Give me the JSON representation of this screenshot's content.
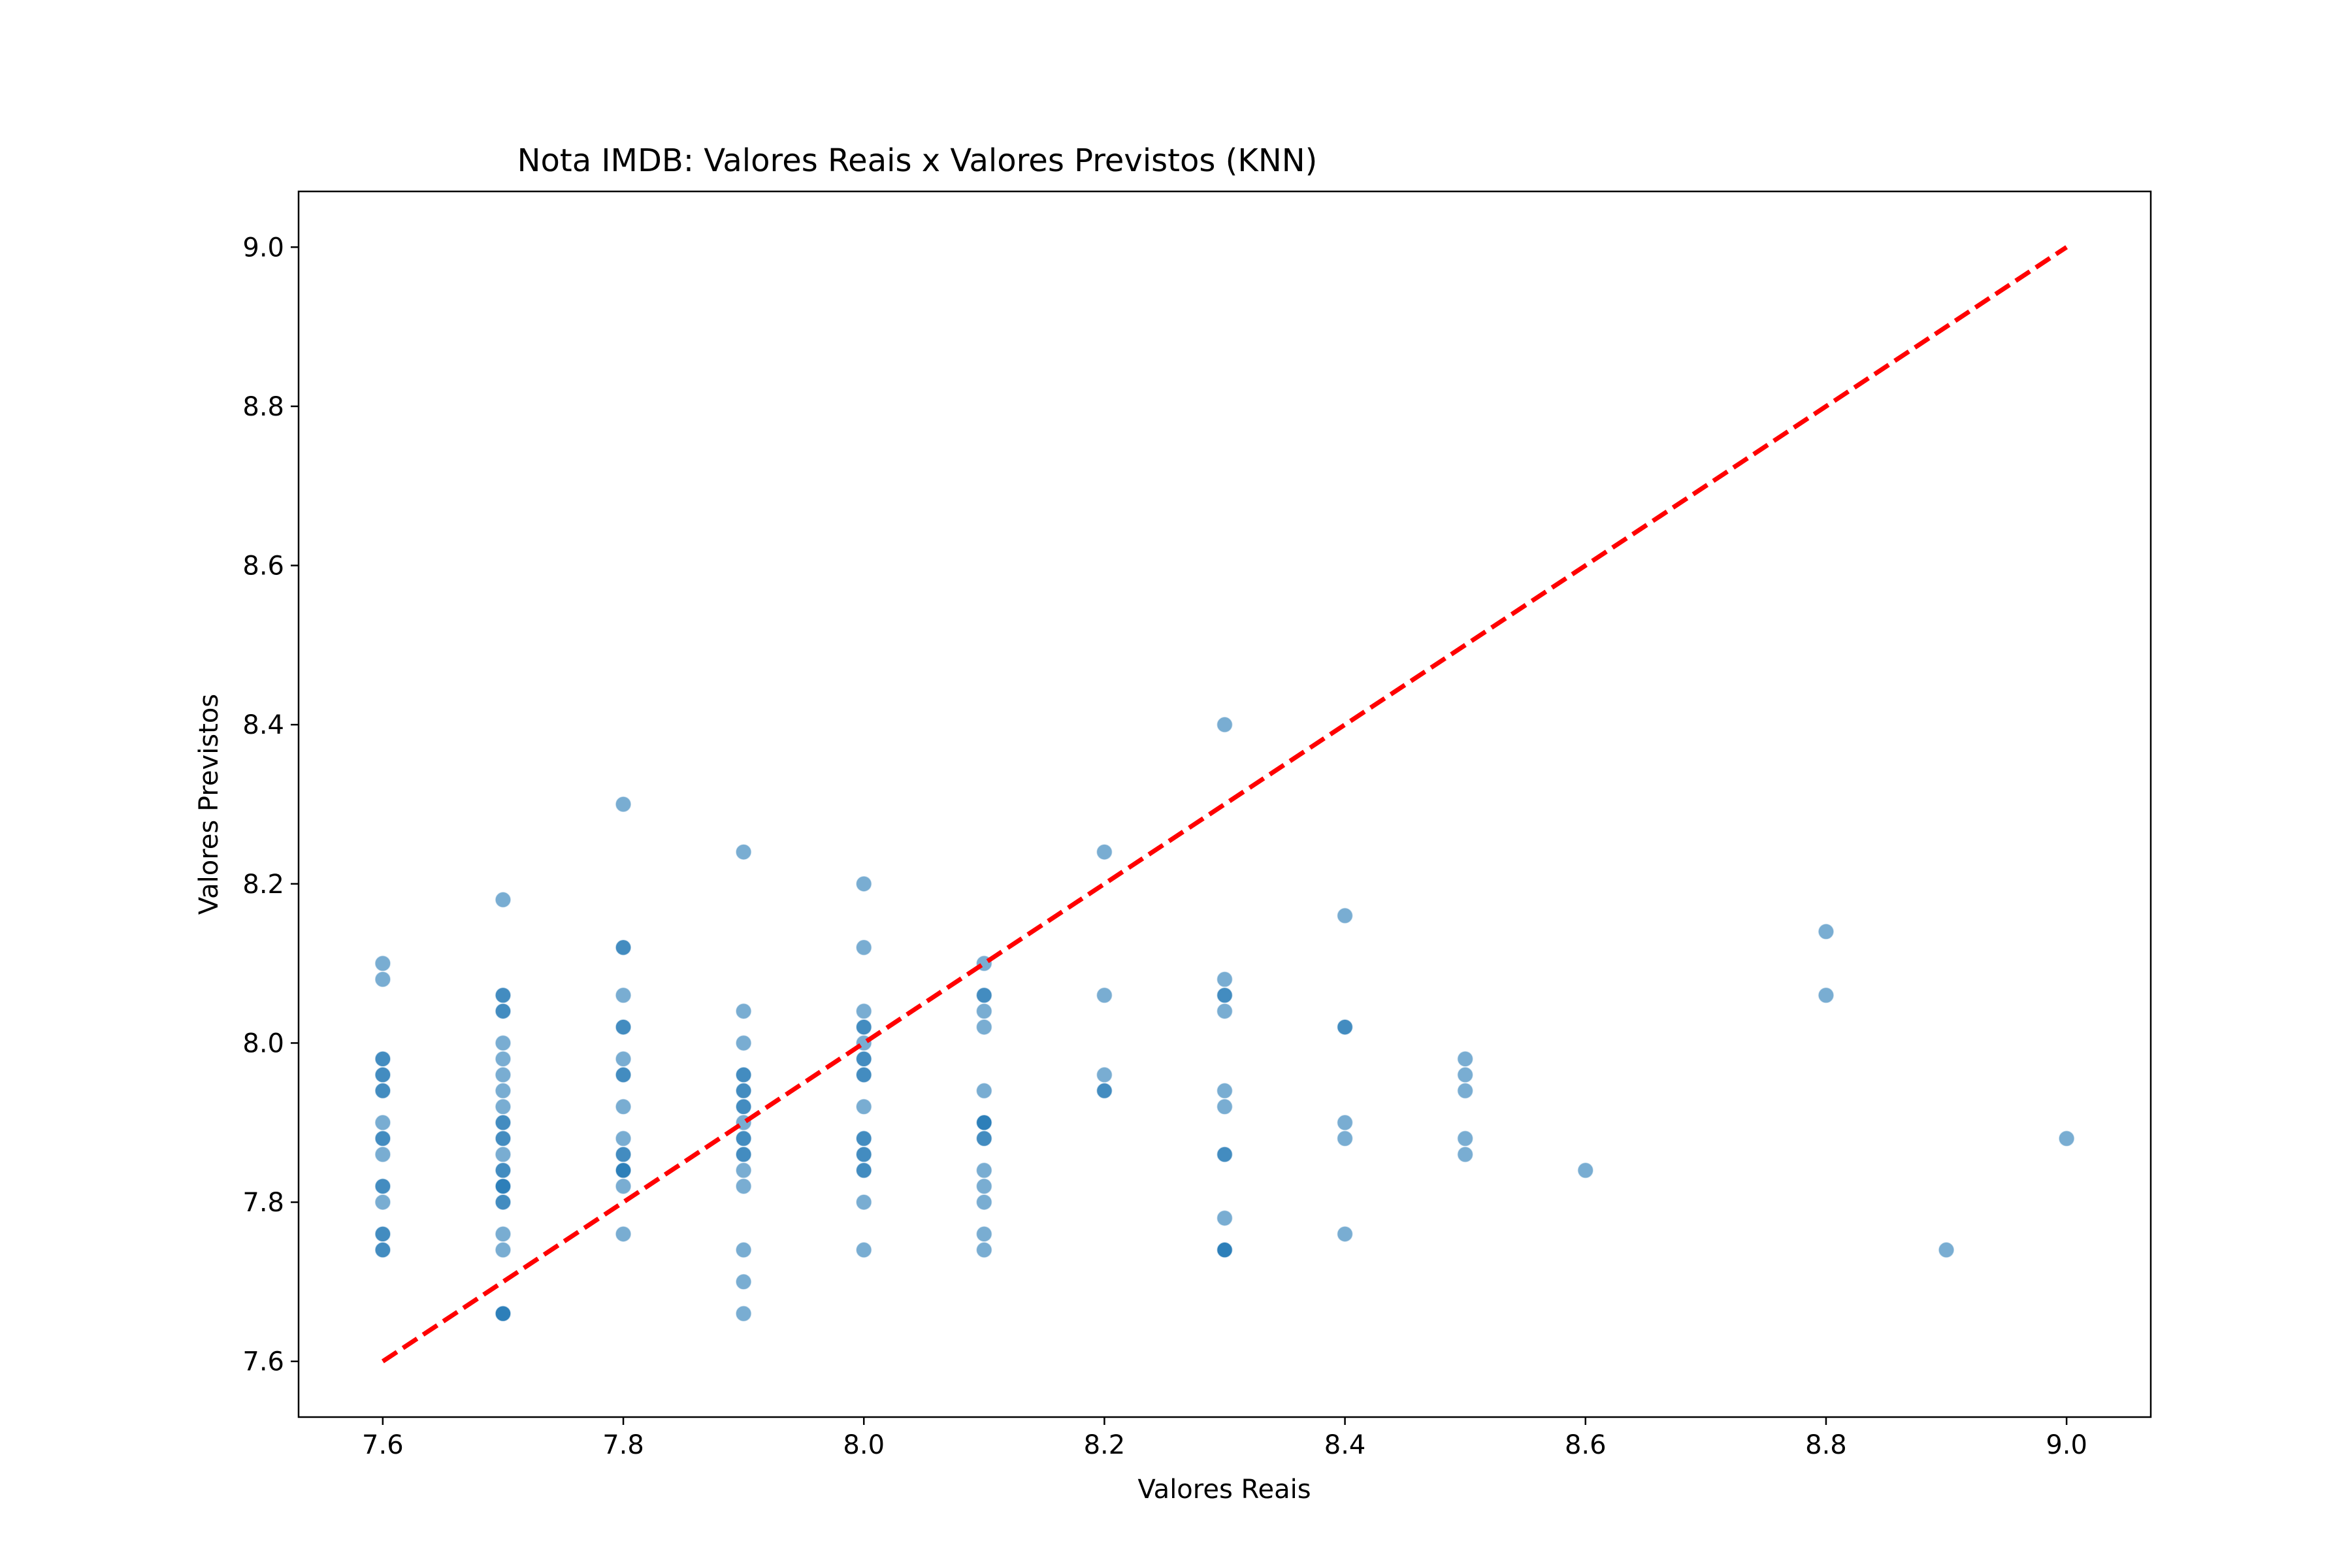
{
  "chart_data": {
    "type": "scatter",
    "title": "Nota IMDB: Valores Reais x Valores Previstos (KNN)",
    "xlabel": "Valores Reais",
    "ylabel": "Valores Previstos",
    "xlim": [
      7.53,
      9.07
    ],
    "ylim": [
      7.53,
      9.07
    ],
    "xticks": [
      "7.6",
      "7.8",
      "8.0",
      "8.2",
      "8.4",
      "8.6",
      "8.8",
      "9.0"
    ],
    "yticks": [
      "7.6",
      "7.8",
      "8.0",
      "8.2",
      "8.4",
      "8.6",
      "8.8",
      "9.0"
    ],
    "grid": false,
    "legend": "none",
    "point_color": "#1f77b4",
    "point_alpha": 0.6,
    "reference_line": {
      "from": [
        7.6,
        7.6
      ],
      "to": [
        9.0,
        9.0
      ],
      "color": "#ff0000",
      "style": "dashed"
    },
    "points": [
      [
        7.6,
        8.1
      ],
      [
        7.6,
        8.08
      ],
      [
        7.6,
        7.98
      ],
      [
        7.6,
        7.98
      ],
      [
        7.6,
        7.96
      ],
      [
        7.6,
        7.96
      ],
      [
        7.6,
        7.94
      ],
      [
        7.6,
        7.94
      ],
      [
        7.6,
        7.9
      ],
      [
        7.6,
        7.88
      ],
      [
        7.6,
        7.88
      ],
      [
        7.6,
        7.86
      ],
      [
        7.6,
        7.82
      ],
      [
        7.6,
        7.82
      ],
      [
        7.6,
        7.8
      ],
      [
        7.6,
        7.76
      ],
      [
        7.6,
        7.76
      ],
      [
        7.6,
        7.74
      ],
      [
        7.6,
        7.74
      ],
      [
        7.7,
        8.18
      ],
      [
        7.7,
        8.06
      ],
      [
        7.7,
        8.06
      ],
      [
        7.7,
        8.04
      ],
      [
        7.7,
        8.04
      ],
      [
        7.7,
        8.0
      ],
      [
        7.7,
        7.98
      ],
      [
        7.7,
        7.96
      ],
      [
        7.7,
        7.94
      ],
      [
        7.7,
        7.92
      ],
      [
        7.7,
        7.9
      ],
      [
        7.7,
        7.9
      ],
      [
        7.7,
        7.88
      ],
      [
        7.7,
        7.88
      ],
      [
        7.7,
        7.86
      ],
      [
        7.7,
        7.84
      ],
      [
        7.7,
        7.84
      ],
      [
        7.7,
        7.82
      ],
      [
        7.7,
        7.82
      ],
      [
        7.7,
        7.82
      ],
      [
        7.7,
        7.8
      ],
      [
        7.7,
        7.8
      ],
      [
        7.7,
        7.76
      ],
      [
        7.7,
        7.74
      ],
      [
        7.7,
        7.66
      ],
      [
        7.7,
        7.66
      ],
      [
        7.7,
        7.66
      ],
      [
        7.8,
        8.3
      ],
      [
        7.8,
        8.12
      ],
      [
        7.8,
        8.12
      ],
      [
        7.8,
        8.06
      ],
      [
        7.8,
        8.02
      ],
      [
        7.8,
        8.02
      ],
      [
        7.8,
        7.98
      ],
      [
        7.8,
        7.96
      ],
      [
        7.8,
        7.96
      ],
      [
        7.8,
        7.92
      ],
      [
        7.8,
        7.88
      ],
      [
        7.8,
        7.86
      ],
      [
        7.8,
        7.86
      ],
      [
        7.8,
        7.84
      ],
      [
        7.8,
        7.84
      ],
      [
        7.8,
        7.84
      ],
      [
        7.8,
        7.82
      ],
      [
        7.8,
        7.76
      ],
      [
        7.9,
        8.24
      ],
      [
        7.9,
        8.04
      ],
      [
        7.9,
        8.0
      ],
      [
        7.9,
        7.96
      ],
      [
        7.9,
        7.96
      ],
      [
        7.9,
        7.94
      ],
      [
        7.9,
        7.94
      ],
      [
        7.9,
        7.92
      ],
      [
        7.9,
        7.92
      ],
      [
        7.9,
        7.9
      ],
      [
        7.9,
        7.88
      ],
      [
        7.9,
        7.88
      ],
      [
        7.9,
        7.86
      ],
      [
        7.9,
        7.86
      ],
      [
        7.9,
        7.84
      ],
      [
        7.9,
        7.82
      ],
      [
        7.9,
        7.74
      ],
      [
        7.9,
        7.7
      ],
      [
        7.9,
        7.66
      ],
      [
        8.0,
        8.2
      ],
      [
        8.0,
        8.12
      ],
      [
        8.0,
        8.04
      ],
      [
        8.0,
        8.02
      ],
      [
        8.0,
        8.02
      ],
      [
        8.0,
        8.0
      ],
      [
        8.0,
        7.98
      ],
      [
        8.0,
        7.98
      ],
      [
        8.0,
        7.96
      ],
      [
        8.0,
        7.96
      ],
      [
        8.0,
        7.92
      ],
      [
        8.0,
        7.88
      ],
      [
        8.0,
        7.88
      ],
      [
        8.0,
        7.86
      ],
      [
        8.0,
        7.86
      ],
      [
        8.0,
        7.84
      ],
      [
        8.0,
        7.84
      ],
      [
        8.0,
        7.8
      ],
      [
        8.0,
        7.74
      ],
      [
        8.1,
        8.1
      ],
      [
        8.1,
        8.06
      ],
      [
        8.1,
        8.06
      ],
      [
        8.1,
        8.04
      ],
      [
        8.1,
        8.02
      ],
      [
        8.1,
        7.94
      ],
      [
        8.1,
        7.9
      ],
      [
        8.1,
        7.9
      ],
      [
        8.1,
        7.9
      ],
      [
        8.1,
        7.88
      ],
      [
        8.1,
        7.88
      ],
      [
        8.1,
        7.84
      ],
      [
        8.1,
        7.82
      ],
      [
        8.1,
        7.8
      ],
      [
        8.1,
        7.76
      ],
      [
        8.1,
        7.74
      ],
      [
        8.2,
        8.24
      ],
      [
        8.2,
        8.06
      ],
      [
        8.2,
        7.96
      ],
      [
        8.2,
        7.94
      ],
      [
        8.2,
        7.94
      ],
      [
        8.3,
        8.4
      ],
      [
        8.3,
        8.08
      ],
      [
        8.3,
        8.06
      ],
      [
        8.3,
        8.06
      ],
      [
        8.3,
        8.04
      ],
      [
        8.3,
        7.94
      ],
      [
        8.3,
        7.92
      ],
      [
        8.3,
        7.86
      ],
      [
        8.3,
        7.86
      ],
      [
        8.3,
        7.78
      ],
      [
        8.3,
        7.74
      ],
      [
        8.3,
        7.74
      ],
      [
        8.3,
        7.74
      ],
      [
        8.4,
        8.16
      ],
      [
        8.4,
        8.02
      ],
      [
        8.4,
        8.02
      ],
      [
        8.4,
        7.9
      ],
      [
        8.4,
        7.88
      ],
      [
        8.4,
        7.76
      ],
      [
        8.5,
        7.98
      ],
      [
        8.5,
        7.96
      ],
      [
        8.5,
        7.94
      ],
      [
        8.5,
        7.88
      ],
      [
        8.5,
        7.86
      ],
      [
        8.6,
        7.84
      ],
      [
        8.8,
        8.14
      ],
      [
        8.8,
        8.06
      ],
      [
        8.9,
        7.74
      ],
      [
        9.0,
        7.88
      ]
    ]
  }
}
